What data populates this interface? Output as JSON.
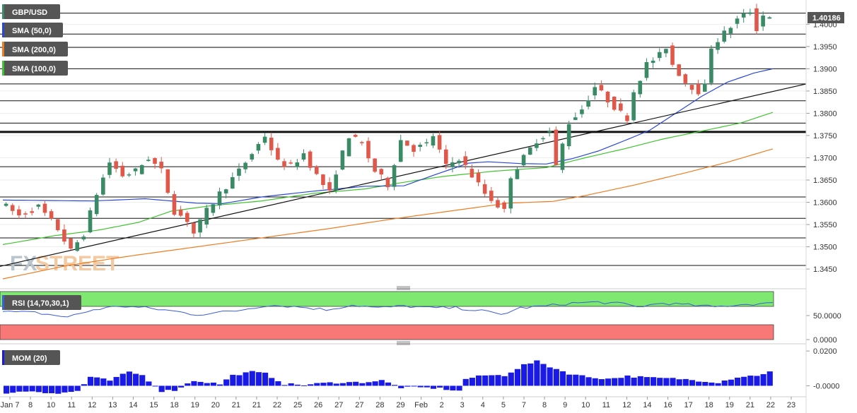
{
  "legend": {
    "symbol": "GBP/USD",
    "sma50": "SMA (50,0)",
    "sma200": "SMA (200,0)",
    "sma100": "SMA (100,0)",
    "rsi": "RSI (14,70,30,1)",
    "mom": "MOM (20)"
  },
  "watermark": {
    "fx": "FX",
    "street": "STREET"
  },
  "last_price": "1.40186",
  "colors": {
    "bull": "#3a8a66",
    "bear": "#e0584a",
    "sma50": "#2948d8",
    "sma100": "#3ec42e",
    "sma200": "#f07c22",
    "rsi_line": "#3b5fd6",
    "rsi_over": "#7ee870",
    "rsi_under": "#f87878",
    "mom": "#1a1ae6",
    "tag_bg": "#555555"
  },
  "chart_data": [
    {
      "type": "candlestick",
      "title": "GBP/USD",
      "ylim": [
        1.342,
        1.4045
      ],
      "y_ticks": [
        "1.4000",
        "1.3950",
        "1.3900",
        "1.3850",
        "1.3800",
        "1.3750",
        "1.3700",
        "1.3650",
        "1.3600",
        "1.3550",
        "1.3500",
        "1.3450"
      ],
      "x_ticks": [
        "Jan 7",
        "8",
        "10",
        "11",
        "12",
        "13",
        "14",
        "15",
        "18",
        "19",
        "20",
        "21",
        "21",
        "22",
        "25",
        "26",
        "27",
        "27",
        "28",
        "29",
        "Feb",
        "2",
        "3",
        "4",
        "5",
        "7",
        "8",
        "9",
        "10",
        "11",
        "12",
        "14",
        "16",
        "17",
        "18",
        "19",
        "21",
        "22",
        "23"
      ],
      "series": [
        {
          "name": "SMA (50,0)",
          "anchors": [
            [
              0,
              1.3605
            ],
            [
              14,
              1.3603
            ],
            [
              22,
              1.3608
            ],
            [
              30,
              1.3598
            ],
            [
              34,
              1.3597
            ],
            [
              40,
              1.3612
            ],
            [
              48,
              1.3625
            ],
            [
              56,
              1.3636
            ],
            [
              62,
              1.3637
            ],
            [
              67,
              1.3663
            ],
            [
              72,
              1.3688
            ],
            [
              75,
              1.3691
            ],
            [
              80,
              1.3687
            ],
            [
              84,
              1.3686
            ],
            [
              88,
              1.3698
            ],
            [
              92,
              1.3715
            ],
            [
              96,
              1.3738
            ],
            [
              100,
              1.3762
            ],
            [
              104,
              1.38
            ],
            [
              108,
              1.3838
            ],
            [
              112,
              1.387
            ],
            [
              116,
              1.389
            ],
            [
              119,
              1.39
            ]
          ]
        },
        {
          "name": "SMA (100,0)",
          "anchors": [
            [
              0,
              1.3505
            ],
            [
              8,
              1.3525
            ],
            [
              15,
              1.3538
            ],
            [
              21,
              1.3555
            ],
            [
              26,
              1.358
            ],
            [
              32,
              1.3592
            ],
            [
              40,
              1.3603
            ],
            [
              48,
              1.362
            ],
            [
              56,
              1.363
            ],
            [
              62,
              1.3645
            ],
            [
              68,
              1.3658
            ],
            [
              76,
              1.367
            ],
            [
              84,
              1.3678
            ],
            [
              90,
              1.37
            ],
            [
              96,
              1.372
            ],
            [
              102,
              1.3742
            ],
            [
              108,
              1.376
            ],
            [
              114,
              1.3778
            ],
            [
              119,
              1.3802
            ]
          ]
        },
        {
          "name": "SMA (200,0)",
          "anchors": [
            [
              0,
              1.3428
            ],
            [
              10,
              1.3458
            ],
            [
              20,
              1.348
            ],
            [
              30,
              1.35
            ],
            [
              40,
              1.352
            ],
            [
              50,
              1.354
            ],
            [
              60,
              1.3562
            ],
            [
              70,
              1.3582
            ],
            [
              78,
              1.3598
            ],
            [
              85,
              1.3602
            ],
            [
              90,
              1.3615
            ],
            [
              98,
              1.364
            ],
            [
              106,
              1.3668
            ],
            [
              112,
              1.369
            ],
            [
              119,
              1.372
            ]
          ]
        }
      ],
      "trendline": [
        [
          1.3456,
          1.385
        ]
      ],
      "horizontal_levels": [
        1.4025,
        1.3978,
        1.3948,
        1.39,
        1.3866,
        1.3828,
        1.3778,
        1.3758,
        1.368,
        1.3612,
        1.3564,
        1.352,
        1.3458
      ],
      "price_anchors": [
        [
          0,
          1.36
        ],
        [
          3,
          1.357
        ],
        [
          6,
          1.359
        ],
        [
          9,
          1.354
        ],
        [
          11,
          1.349
        ],
        [
          13,
          1.353
        ],
        [
          15,
          1.362
        ],
        [
          17,
          1.369
        ],
        [
          19,
          1.366
        ],
        [
          21,
          1.367
        ],
        [
          23,
          1.37
        ],
        [
          25,
          1.367
        ],
        [
          27,
          1.358
        ],
        [
          29,
          1.356
        ],
        [
          30,
          1.353
        ],
        [
          32,
          1.358
        ],
        [
          34,
          1.362
        ],
        [
          37,
          1.367
        ],
        [
          39,
          1.371
        ],
        [
          41,
          1.375
        ],
        [
          43,
          1.369
        ],
        [
          45,
          1.368
        ],
        [
          47,
          1.371
        ],
        [
          49,
          1.366
        ],
        [
          51,
          1.362
        ],
        [
          52,
          1.367
        ],
        [
          54,
          1.375
        ],
        [
          56,
          1.373
        ],
        [
          58,
          1.367
        ],
        [
          60,
          1.364
        ],
        [
          62,
          1.374
        ],
        [
          64,
          1.372
        ],
        [
          66,
          1.373
        ],
        [
          67,
          1.375
        ],
        [
          69,
          1.368
        ],
        [
          71,
          1.37
        ],
        [
          73,
          1.366
        ],
        [
          75,
          1.362
        ],
        [
          78,
          1.358
        ],
        [
          79,
          1.366
        ],
        [
          81,
          1.37
        ],
        [
          83,
          1.374
        ],
        [
          85,
          1.376
        ],
        [
          86,
          1.368
        ],
        [
          88,
          1.378
        ],
        [
          90,
          1.381
        ],
        [
          92,
          1.386
        ],
        [
          94,
          1.383
        ],
        [
          96,
          1.38
        ],
        [
          97,
          1.379
        ],
        [
          98,
          1.385
        ],
        [
          100,
          1.391
        ],
        [
          102,
          1.393
        ],
        [
          103,
          1.395
        ],
        [
          104,
          1.391
        ],
        [
          106,
          1.387
        ],
        [
          108,
          1.385
        ],
        [
          109,
          1.386
        ],
        [
          110,
          1.395
        ],
        [
          112,
          1.398
        ],
        [
          114,
          1.401
        ],
        [
          116,
          1.403
        ],
        [
          117,
          1.399
        ],
        [
          118,
          1.402
        ]
      ]
    },
    {
      "type": "line",
      "title": "RSI (14,70,30,1)",
      "ylim": [
        0,
        100
      ],
      "y_ticks": [
        "50.0000",
        "0.0000"
      ],
      "overbought": 70,
      "oversold": 30,
      "anchors": [
        [
          0,
          58
        ],
        [
          5,
          56
        ],
        [
          10,
          47
        ],
        [
          14,
          62
        ],
        [
          18,
          70
        ],
        [
          22,
          66
        ],
        [
          26,
          60
        ],
        [
          30,
          52
        ],
        [
          36,
          60
        ],
        [
          41,
          72
        ],
        [
          46,
          68
        ],
        [
          50,
          62
        ],
        [
          54,
          72
        ],
        [
          58,
          66
        ],
        [
          62,
          70
        ],
        [
          66,
          66
        ],
        [
          70,
          66
        ],
        [
          74,
          60
        ],
        [
          77,
          52
        ],
        [
          80,
          66
        ],
        [
          84,
          70
        ],
        [
          88,
          76
        ],
        [
          92,
          78
        ],
        [
          96,
          74
        ],
        [
          98,
          68
        ],
        [
          102,
          76
        ],
        [
          106,
          72
        ],
        [
          110,
          68
        ],
        [
          114,
          73
        ],
        [
          118,
          75
        ]
      ]
    },
    {
      "type": "bar",
      "title": "MOM (20)",
      "ylim": [
        -0.0055,
        0.0225
      ],
      "y_ticks": [
        "0.0200",
        "-0.0000"
      ],
      "anchors": [
        [
          0,
          -0.004
        ],
        [
          4,
          -0.003
        ],
        [
          8,
          -0.0045
        ],
        [
          11,
          -0.003
        ],
        [
          13,
          0.005
        ],
        [
          16,
          0.003
        ],
        [
          19,
          0.008
        ],
        [
          21,
          0.006
        ],
        [
          24,
          -0.003
        ],
        [
          26,
          -0.0025
        ],
        [
          29,
          0.003
        ],
        [
          33,
          0.001
        ],
        [
          35,
          0.006
        ],
        [
          38,
          0.008
        ],
        [
          40,
          0.007
        ],
        [
          43,
          0.001
        ],
        [
          46,
          0.0005
        ],
        [
          49,
          0.0015
        ],
        [
          52,
          0.002
        ],
        [
          55,
          0.002
        ],
        [
          58,
          0.003
        ],
        [
          61,
          -0.001
        ],
        [
          64,
          -0.001
        ],
        [
          67,
          -0.0015
        ],
        [
          70,
          -0.003
        ],
        [
          71,
          0.004
        ],
        [
          74,
          0.006
        ],
        [
          77,
          0.006
        ],
        [
          80,
          0.012
        ],
        [
          82,
          0.014
        ],
        [
          84,
          0.011
        ],
        [
          87,
          0.007
        ],
        [
          90,
          0.005
        ],
        [
          93,
          0.004
        ],
        [
          96,
          0.0055
        ],
        [
          100,
          0.0045
        ],
        [
          104,
          0.004
        ],
        [
          107,
          0.003
        ],
        [
          110,
          0.002
        ],
        [
          113,
          0.005
        ],
        [
          116,
          0.006
        ],
        [
          118,
          0.008
        ]
      ]
    }
  ]
}
